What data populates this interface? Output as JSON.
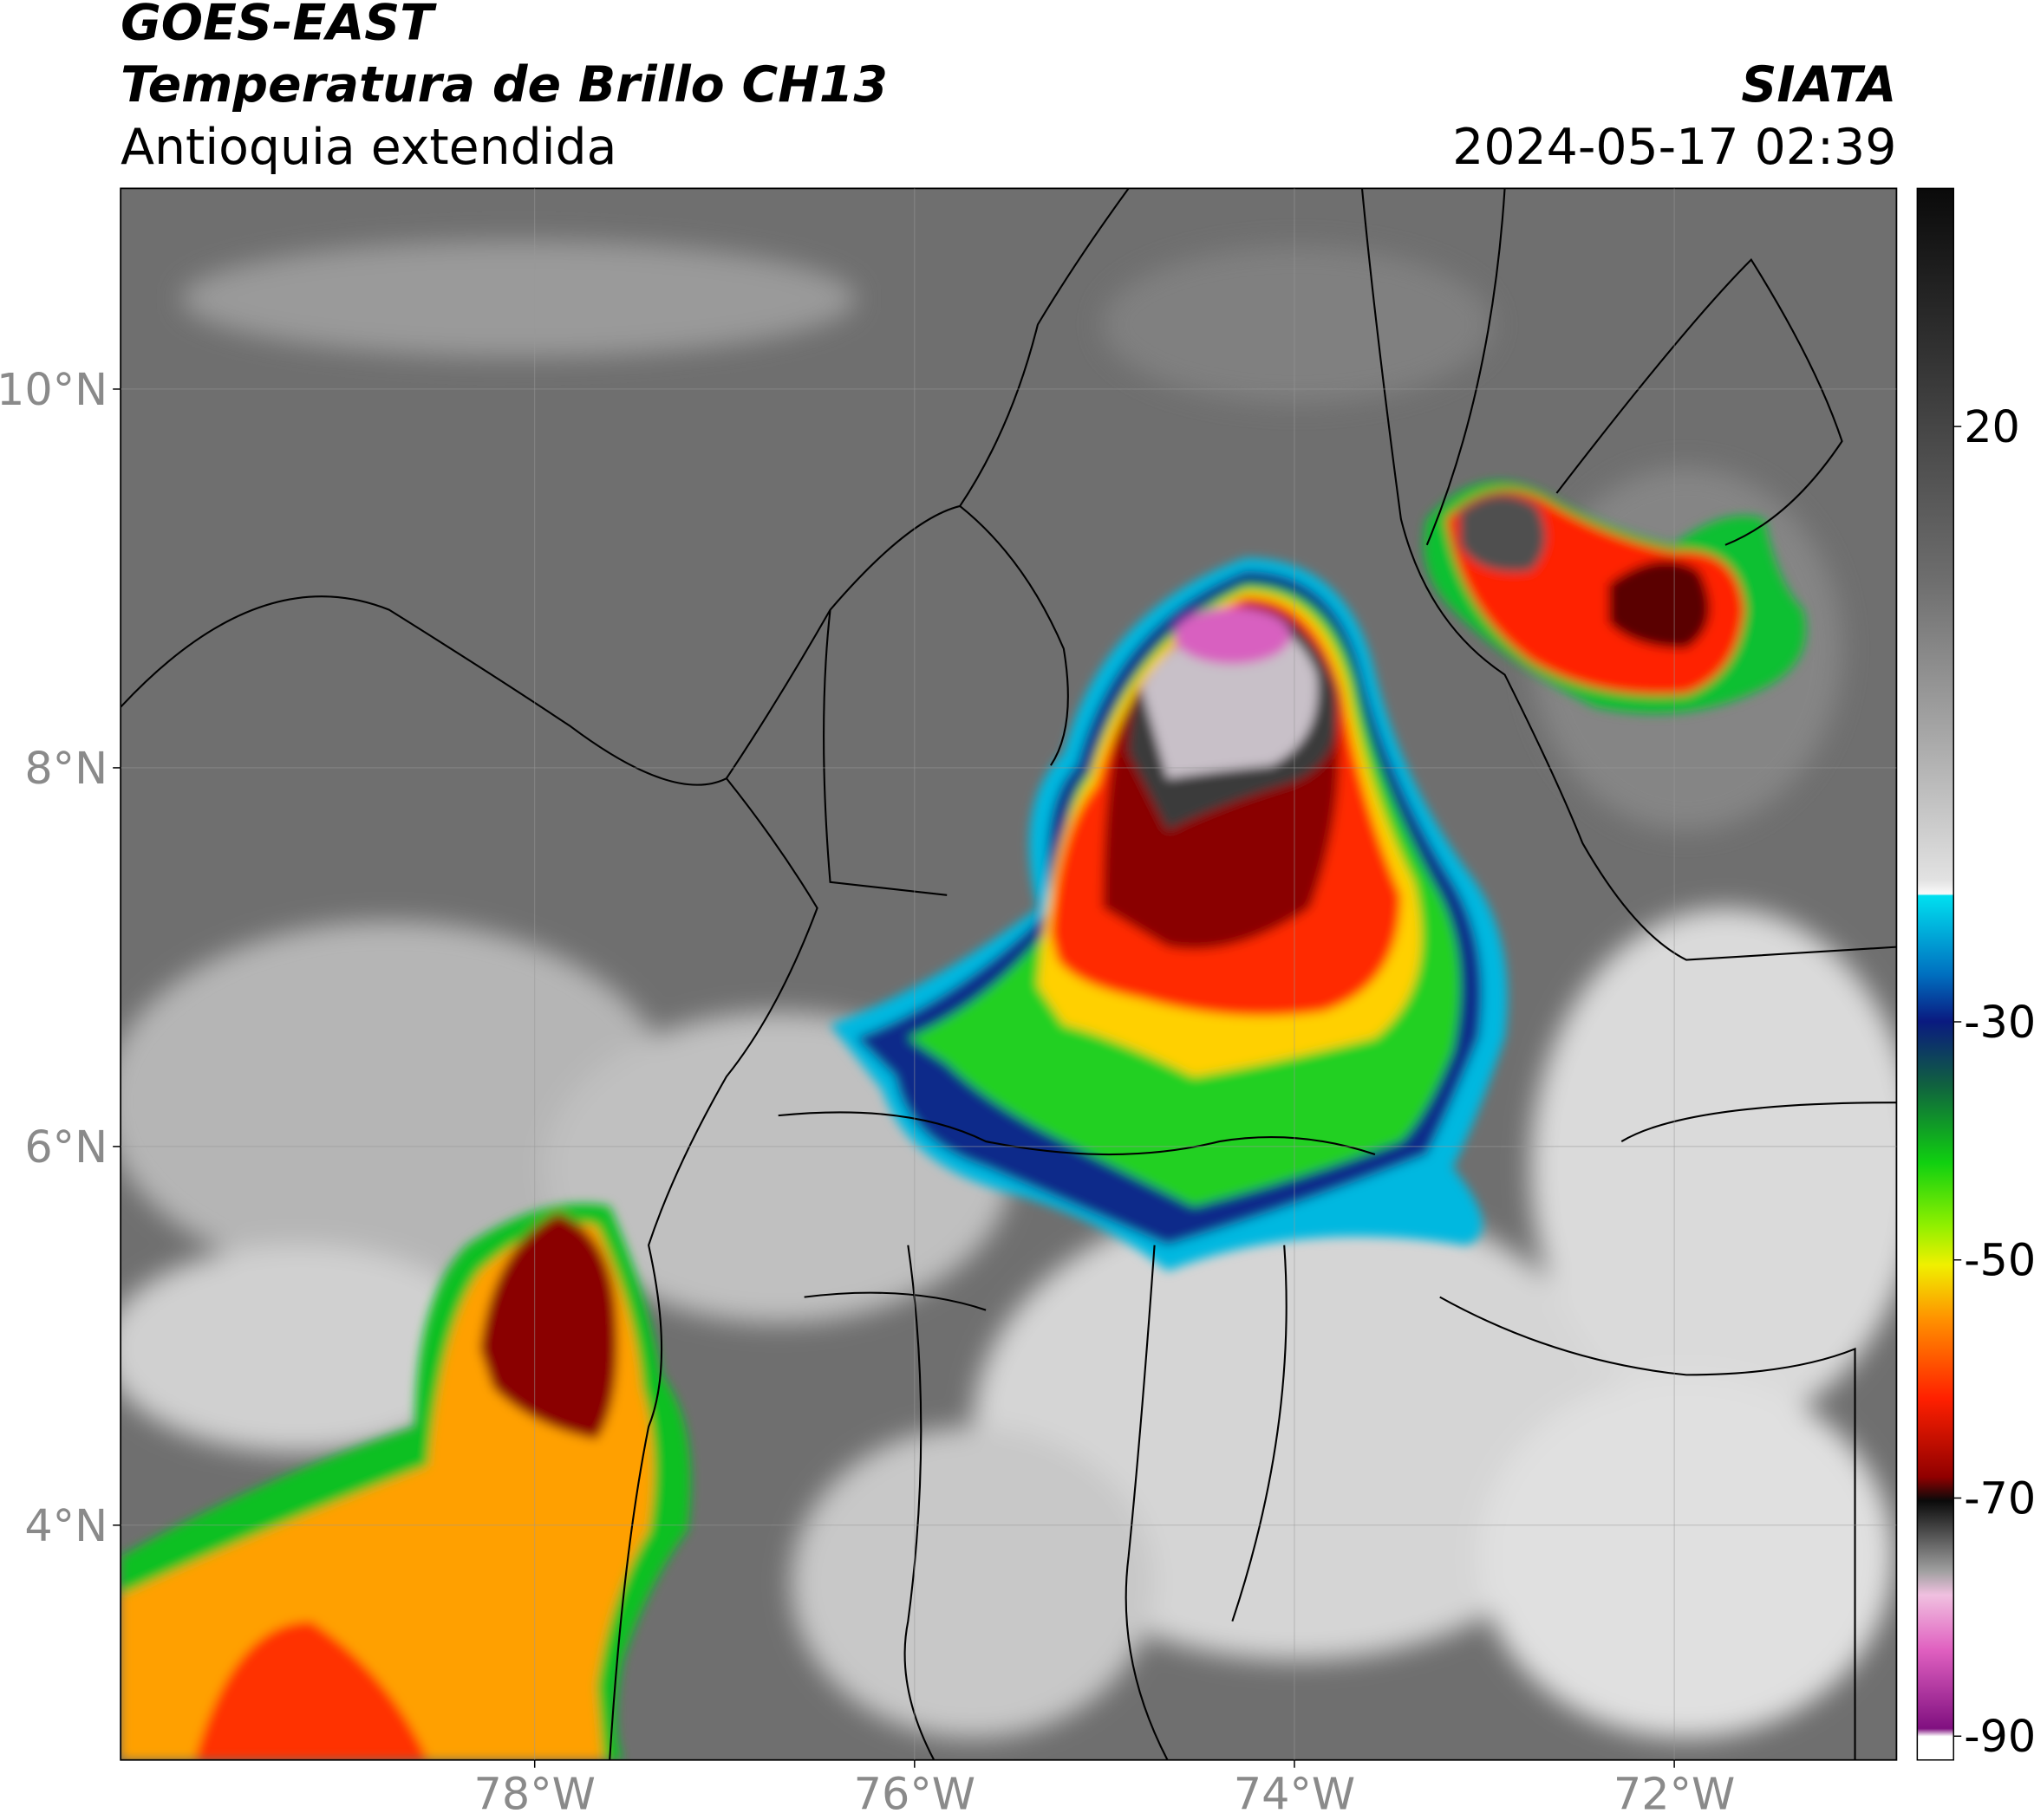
{
  "header": {
    "title": "GOES-EAST",
    "subtitle": "Temperatura de Brillo CH13",
    "region": "Antioquia extendida",
    "source": "SIATA",
    "datetime": "2024-05-17 02:39"
  },
  "map": {
    "xlim": [
      -80.18,
      -70.83
    ],
    "ylim": [
      2.76,
      11.06
    ],
    "xticks": [
      {
        "value": -78,
        "label": "78°W"
      },
      {
        "value": -76,
        "label": "76°W"
      },
      {
        "value": -74,
        "label": "74°W"
      },
      {
        "value": -72,
        "label": "72°W"
      }
    ],
    "yticks": [
      {
        "value": 10,
        "label": "10°N"
      },
      {
        "value": 8,
        "label": "8°N"
      },
      {
        "value": 6,
        "label": "6°N"
      },
      {
        "value": 4,
        "label": "4°N"
      }
    ],
    "grid": true
  },
  "colorbar": {
    "lim": [
      -92,
      40
    ],
    "ticks": [
      20,
      -30,
      -50,
      -70,
      -90
    ]
  }
}
